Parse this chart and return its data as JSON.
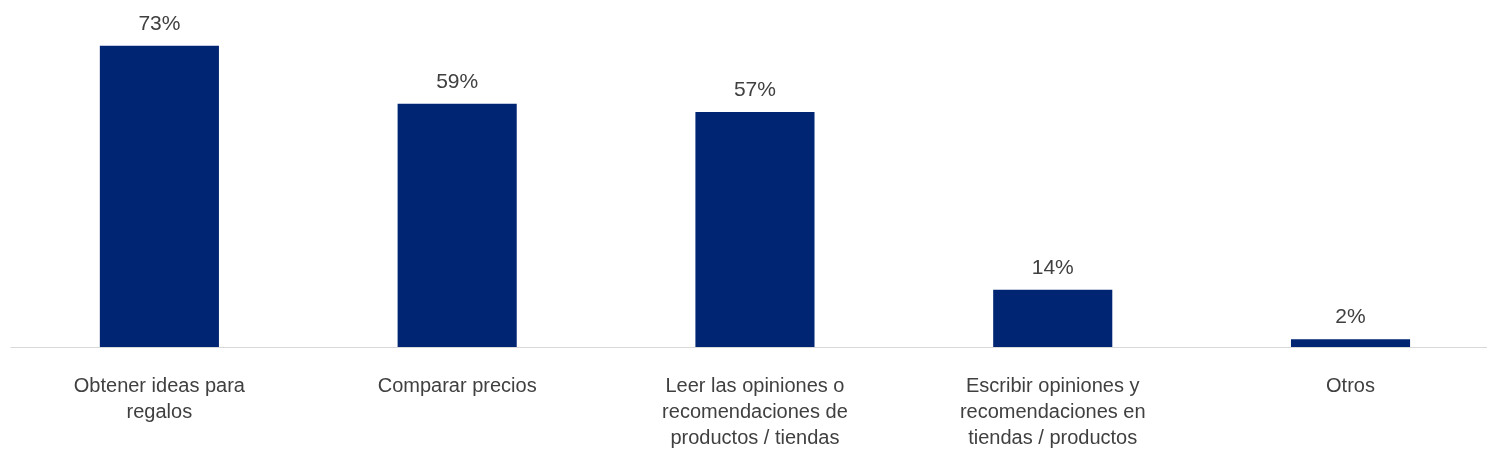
{
  "chart_data": {
    "type": "bar",
    "categories": [
      "Obtener ideas para regalos",
      "Comparar precios",
      "Leer las opiniones o recomendaciones de productos / tiendas",
      "Escribir opiniones y recomendaciones en tiendas / productos",
      "Otros"
    ],
    "values": [
      73,
      59,
      57,
      14,
      2
    ],
    "value_labels": [
      "73%",
      "59%",
      "57%",
      "14%",
      "2%"
    ],
    "color": "#002673"
  }
}
